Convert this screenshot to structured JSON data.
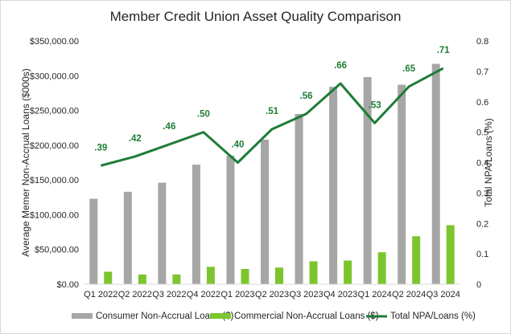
{
  "chart_data": {
    "type": "bar",
    "title": "Member Credit Union Asset Quality Comparison",
    "categories": [
      "Q1 2022",
      "Q2 2022",
      "Q3 2022",
      "Q4 2022",
      "Q1 2023",
      "Q2 2023",
      "Q3 2023",
      "Q4 2023",
      "Q1 2024",
      "Q2 2024",
      "Q3 2024"
    ],
    "series": [
      {
        "name": "Consumer Non-Accrual Loans ($)",
        "type": "bar",
        "axis": "left",
        "color": "#a6a6a6",
        "values": [
          123000,
          133000,
          146000,
          172000,
          185000,
          208000,
          245000,
          284000,
          298000,
          287000,
          317000
        ]
      },
      {
        "name": "Commercial Non-Accrual Loans ($)",
        "type": "bar",
        "axis": "left",
        "color": "#7cc52e",
        "values": [
          18000,
          14000,
          14000,
          25000,
          22000,
          24000,
          33000,
          34000,
          46000,
          69000,
          85000
        ]
      },
      {
        "name": "Total NPA/Loans (%)",
        "type": "line",
        "axis": "right",
        "color": "#1e7d35",
        "values": [
          0.39,
          0.42,
          0.46,
          0.5,
          0.4,
          0.51,
          0.56,
          0.66,
          0.53,
          0.65,
          0.71
        ],
        "labels": [
          ".39",
          ".42",
          ".46",
          ".50",
          ".40",
          ".51",
          ".56",
          ".66",
          ".53",
          ".65",
          ".71"
        ]
      }
    ],
    "ylabel": "Average Memer Non-Accrual Loans ($000s)",
    "y2label": "Total NPA/Loans (%)",
    "ylim": [
      0,
      350000
    ],
    "y2lim": [
      0,
      0.8
    ],
    "yticks": [
      "$0.00",
      "$50,000.00",
      "$100,000.00",
      "$150,000.00",
      "$200,000.00",
      "$250,000.00",
      "$300,000.00",
      "$350,000.00"
    ],
    "y2ticks": [
      "0",
      "0.1",
      "0.2",
      "0.3",
      "0.4",
      "0.5",
      "0.6",
      "0.7",
      "0.8"
    ],
    "grid": false,
    "legend_position": "bottom"
  }
}
